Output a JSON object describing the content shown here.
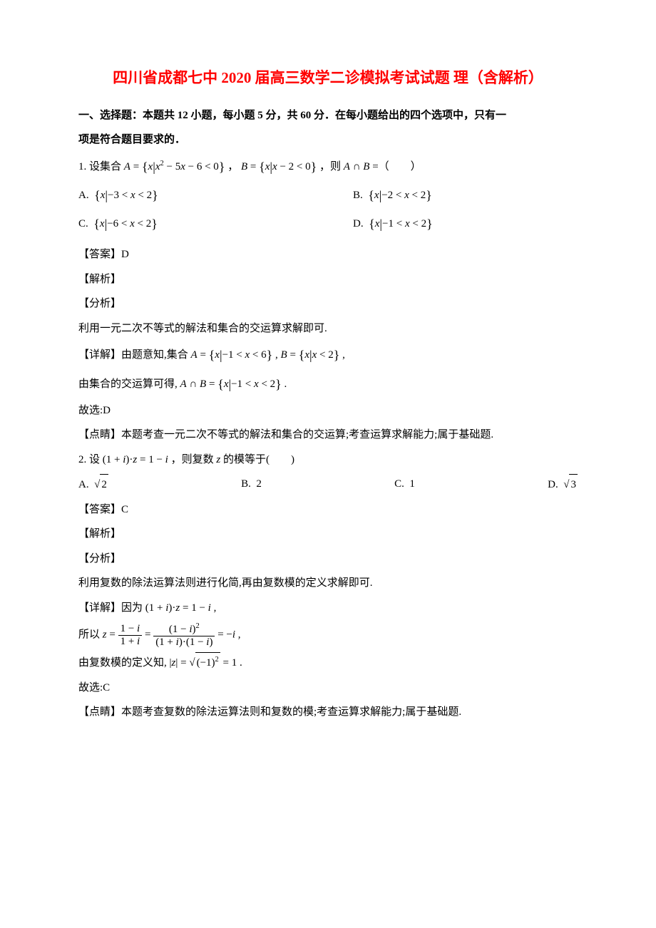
{
  "colors": {
    "title": "#ff0000",
    "text": "#000000",
    "background": "#ffffff"
  },
  "typography": {
    "title_fontsize": 21,
    "body_fontsize": 15,
    "line_height": 1.9,
    "title_font": "SimSun",
    "body_font": "SimSun"
  },
  "title": "四川省成都七中 2020 届高三数学二诊模拟考试试题 理（含解析）",
  "section_header_line1": "一、选择题：本题共 12 小题，每小题 5 分，共 60 分．在每小题给出的四个选项中，只有一",
  "section_header_line2": "项是符合题目要求的．",
  "q1": {
    "stem_prefix": "1. 设集合 ",
    "set_A": "A = { x | x² − 5x − 6 < 0 }",
    "set_B": "B = { x | x − 2 < 0 }",
    "stem_suffix": "，则 A ∩ B =（　　）",
    "options": {
      "A": {
        "label": "A.",
        "set": "{ x | −3 < x < 2 }"
      },
      "B": {
        "label": "B.",
        "set": "{ x | −2 < x < 2 }"
      },
      "C": {
        "label": "C.",
        "set": "{ x | −6 < x < 2 }"
      },
      "D": {
        "label": "D.",
        "set": "{ x | −1 < x < 2 }"
      }
    },
    "answer": "【答案】D",
    "jiexi": "【解析】",
    "fenxi": "【分析】",
    "fenxi_text": "利用一元二次不等式的解法和集合的交运算求解即可.",
    "detail_prefix": "【详解】由题意知,集合 ",
    "detail_A": "A = { x | −1 < x < 6 }",
    "detail_B": "B = { x | x < 2 }",
    "detail_suffix": " ,",
    "cross_prefix": "由集合的交运算可得, ",
    "cross_result": "A ∩ B = { x | −1 < x < 2 }",
    "cross_suffix": " .",
    "guxuan": "故选:D",
    "dianjing": "【点睛】本题考查一元二次不等式的解法和集合的交运算;考查运算求解能力;属于基础题."
  },
  "q2": {
    "stem_prefix": "2. 设 ",
    "equation": "(1 + i)·z = 1 − i",
    "stem_suffix": "，则复数 z 的模等于(　　)",
    "options": {
      "A": {
        "label": "A.",
        "value": "√2"
      },
      "B": {
        "label": "B.",
        "value": "2"
      },
      "C": {
        "label": "C.",
        "value": "1"
      },
      "D": {
        "label": "D.",
        "value": "√3"
      }
    },
    "answer": "【答案】C",
    "jiexi": "【解析】",
    "fenxi": "【分析】",
    "fenxi_text": "利用复数的除法运算法则进行化简,再由复数模的定义求解即可.",
    "detail_prefix": "【详解】因为 ",
    "detail_eq": "(1 + i)·z = 1 − i",
    "detail_suffix": " ,",
    "suoyi_prefix": "所以 ",
    "z_formula": "z = (1−i)/(1+i) = (1−i)² / ((1+i)·(1−i)) = −i",
    "frac1_num": "1 − i",
    "frac1_den": "1 + i",
    "frac2_num": "(1 − i)²",
    "frac2_den": "(1 + i)·(1 − i)",
    "z_result": "= −i",
    "suoyi_suffix": " ,",
    "mod_prefix": "由复数模的定义知, ",
    "mod_formula": "|z| = √((−1)²) = 1",
    "mod_suffix": " .",
    "guxuan": "故选:C",
    "dianjing": "【点睛】本题考查复数的除法运算法则和复数的模;考查运算求解能力;属于基础题."
  }
}
